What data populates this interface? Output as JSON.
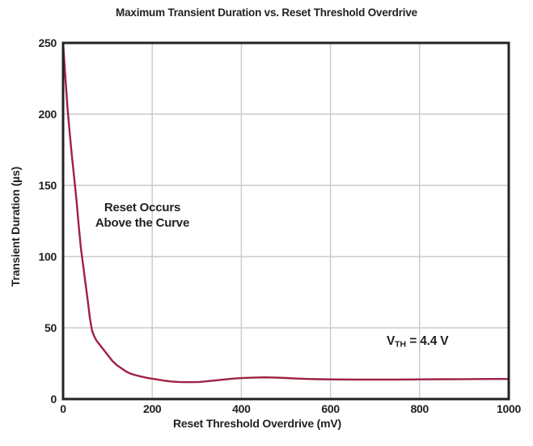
{
  "figure": {
    "background": "#ffffff",
    "text_color": "#231f20",
    "axis_color": "#262223",
    "grid_color": "#c9cacb",
    "curve_color": "#9e2143"
  },
  "chart_data": {
    "type": "line",
    "title": "Maximum Transient Duration vs. Reset Threshold Overdrive",
    "xlabel": "Reset Threshold Overdrive (mV)",
    "ylabel": "Transient Duration (µs)",
    "xlim": [
      0,
      1000
    ],
    "ylim": [
      0,
      250
    ],
    "xticks": [
      0,
      200,
      400,
      600,
      800,
      1000
    ],
    "yticks": [
      0,
      50,
      100,
      150,
      200,
      250
    ],
    "grid": true,
    "legend": "none",
    "series": [
      {
        "name": "maximum-transient-duration",
        "color": "#9e2143",
        "points": [
          [
            0,
            250
          ],
          [
            5,
            226
          ],
          [
            10,
            204
          ],
          [
            15,
            186
          ],
          [
            20,
            170
          ],
          [
            25,
            155
          ],
          [
            30,
            140
          ],
          [
            35,
            122
          ],
          [
            40,
            106
          ],
          [
            45,
            94
          ],
          [
            50,
            82
          ],
          [
            55,
            70
          ],
          [
            60,
            57
          ],
          [
            65,
            48
          ],
          [
            70,
            44
          ],
          [
            75,
            41
          ],
          [
            80,
            39
          ],
          [
            85,
            37
          ],
          [
            90,
            35
          ],
          [
            100,
            31
          ],
          [
            110,
            27
          ],
          [
            120,
            24
          ],
          [
            130,
            21.8
          ],
          [
            140,
            19.6
          ],
          [
            150,
            18
          ],
          [
            160,
            17
          ],
          [
            175,
            15.8
          ],
          [
            190,
            14.8
          ],
          [
            200,
            14.3
          ],
          [
            215,
            13.5
          ],
          [
            230,
            12.8
          ],
          [
            245,
            12.3
          ],
          [
            260,
            12
          ],
          [
            275,
            11.9
          ],
          [
            290,
            11.9
          ],
          [
            305,
            12
          ],
          [
            320,
            12.4
          ],
          [
            340,
            13
          ],
          [
            360,
            13.7
          ],
          [
            380,
            14.3
          ],
          [
            400,
            14.7
          ],
          [
            425,
            15
          ],
          [
            450,
            15.2
          ],
          [
            475,
            15.1
          ],
          [
            500,
            14.8
          ],
          [
            525,
            14.4
          ],
          [
            550,
            14.1
          ],
          [
            575,
            13.9
          ],
          [
            600,
            13.8
          ],
          [
            650,
            13.7
          ],
          [
            700,
            13.7
          ],
          [
            750,
            13.7
          ],
          [
            800,
            13.8
          ],
          [
            850,
            13.9
          ],
          [
            900,
            14
          ],
          [
            950,
            14.1
          ],
          [
            1000,
            14.1
          ]
        ]
      }
    ],
    "annotations": {
      "region_note": {
        "line1": "Reset Occurs",
        "line2": "Above the Curve"
      },
      "vth_note": {
        "prefix": "V",
        "sub": "TH",
        "rest": " = 4.4 V"
      }
    }
  }
}
